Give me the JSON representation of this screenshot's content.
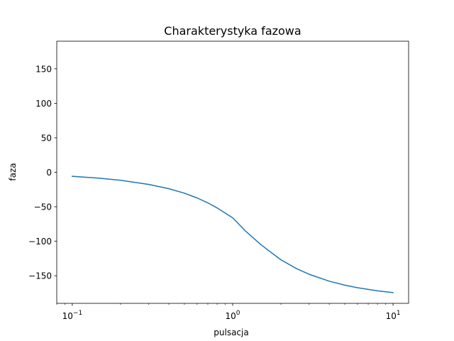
{
  "chart_data": {
    "type": "line",
    "title": "Charakterystyka fazowa",
    "xlabel": "pulsacja",
    "ylabel": "faza",
    "xscale": "log",
    "xlim": [
      0.08,
      12.5
    ],
    "ylim": [
      -190,
      190
    ],
    "xticks": [
      {
        "value": 0.1,
        "base": "10",
        "exp": "−1"
      },
      {
        "value": 1,
        "base": "10",
        "exp": "0"
      },
      {
        "value": 10,
        "base": "10",
        "exp": "1"
      }
    ],
    "yticks": [
      {
        "value": 150,
        "label": "150"
      },
      {
        "value": 100,
        "label": "100"
      },
      {
        "value": 50,
        "label": "50"
      },
      {
        "value": 0,
        "label": "0"
      },
      {
        "value": -50,
        "label": "−50"
      },
      {
        "value": -100,
        "label": "−100"
      },
      {
        "value": -150,
        "label": "−150"
      }
    ],
    "grid": false,
    "series": [
      {
        "color": "#1f77b4",
        "x": [
          0.1,
          0.15,
          0.2,
          0.3,
          0.4,
          0.5,
          0.6,
          0.7,
          0.8,
          0.9,
          1.0,
          1.2,
          1.5,
          2.0,
          2.5,
          3.0,
          4.0,
          5.0,
          6.0,
          8.0,
          10.0
        ],
        "y": [
          -5.8,
          -8.7,
          -11.6,
          -17.6,
          -23.8,
          -30.3,
          -37.2,
          -44.3,
          -51.7,
          -59.2,
          -66.0,
          -85.0,
          -105.0,
          -126.9,
          -139.6,
          -147.9,
          -157.9,
          -163.6,
          -167.3,
          -171.9,
          -174.5
        ]
      }
    ]
  }
}
